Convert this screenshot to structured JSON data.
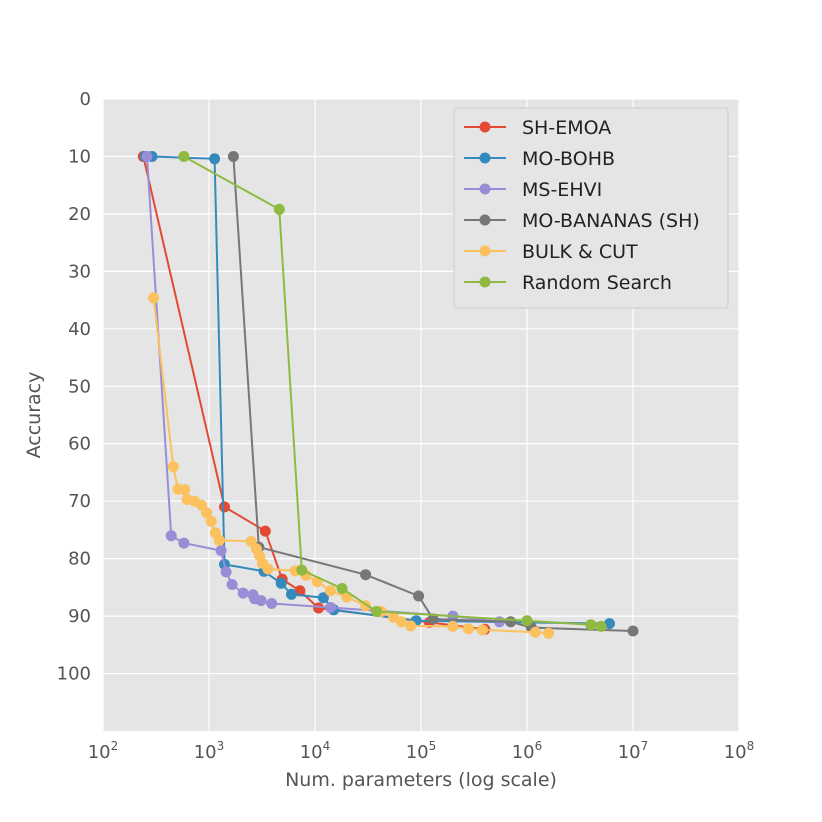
{
  "chart_data": {
    "type": "line",
    "title": "",
    "xlabel": "Num. parameters (log scale)",
    "ylabel": "Accuracy",
    "xscale": "log",
    "xlim": [
      100,
      100000000
    ],
    "ylim": [
      110,
      0
    ],
    "y_inverted": true,
    "grid": true,
    "legend_position": "top-right",
    "x_ticks": [
      {
        "base": "10",
        "exp": "2",
        "value": 100
      },
      {
        "base": "10",
        "exp": "3",
        "value": 1000
      },
      {
        "base": "10",
        "exp": "4",
        "value": 10000
      },
      {
        "base": "10",
        "exp": "5",
        "value": 100000
      },
      {
        "base": "10",
        "exp": "6",
        "value": 1000000
      },
      {
        "base": "10",
        "exp": "7",
        "value": 10000000
      },
      {
        "base": "10",
        "exp": "8",
        "value": 100000000
      }
    ],
    "y_ticks": [
      "0",
      "10",
      "20",
      "30",
      "40",
      "50",
      "60",
      "70",
      "80",
      "90",
      "100"
    ],
    "series": [
      {
        "name": "SH-EMOA",
        "color": "#E24A33",
        "points": [
          [
            240,
            10
          ],
          [
            1400,
            71
          ],
          [
            3400,
            75.2
          ],
          [
            4900,
            83.6
          ],
          [
            7200,
            85.6
          ],
          [
            10800,
            88.6
          ],
          [
            120000,
            91.1
          ],
          [
            400000,
            92.3
          ]
        ]
      },
      {
        "name": "MO-BOHB",
        "color": "#348ABD",
        "points": [
          [
            250,
            10
          ],
          [
            290,
            10
          ],
          [
            1130,
            10.4
          ],
          [
            1400,
            81
          ],
          [
            3300,
            82.2
          ],
          [
            4800,
            84.3
          ],
          [
            6000,
            86.2
          ],
          [
            12000,
            86.8
          ],
          [
            15000,
            88.9
          ],
          [
            90000,
            90.8
          ],
          [
            6000000,
            91.3
          ]
        ]
      },
      {
        "name": "MS-EHVI",
        "color": "#988ED5",
        "points": [
          [
            260,
            10
          ],
          [
            440,
            76
          ],
          [
            580,
            77.3
          ],
          [
            1300,
            78.6
          ],
          [
            1450,
            82.3
          ],
          [
            1650,
            84.5
          ],
          [
            2100,
            86
          ],
          [
            2600,
            86.3
          ],
          [
            2700,
            87
          ],
          [
            3100,
            87.3
          ],
          [
            3900,
            87.8
          ],
          [
            14000,
            88.5
          ],
          [
            200000,
            90
          ],
          [
            550000,
            91
          ]
        ]
      },
      {
        "name": "MO-BANANAS (SH)",
        "color": "#777777",
        "points": [
          [
            1700,
            10
          ],
          [
            2950,
            78
          ],
          [
            30000,
            82.8
          ],
          [
            95000,
            86.5
          ],
          [
            130000,
            90.5
          ],
          [
            700000,
            91
          ],
          [
            1100000,
            92
          ],
          [
            10000000,
            92.6
          ]
        ]
      },
      {
        "name": "BULK & CUT",
        "color": "#FBC15E",
        "points": [
          [
            300,
            34.6
          ],
          [
            460,
            64
          ],
          [
            510,
            67.9
          ],
          [
            590,
            68
          ],
          [
            620,
            69.7
          ],
          [
            730,
            70
          ],
          [
            850,
            70.7
          ],
          [
            950,
            72
          ],
          [
            1050,
            73.5
          ],
          [
            1150,
            75.5
          ],
          [
            1250,
            76.8
          ],
          [
            2500,
            77
          ],
          [
            2800,
            78.3
          ],
          [
            3000,
            79.5
          ],
          [
            3200,
            80.8
          ],
          [
            3600,
            81.8
          ],
          [
            6500,
            82.1
          ],
          [
            8200,
            82.9
          ],
          [
            10500,
            84
          ],
          [
            14000,
            85.6
          ],
          [
            20000,
            86.7
          ],
          [
            30000,
            88.2
          ],
          [
            42000,
            89.2
          ],
          [
            55000,
            90.2
          ],
          [
            65000,
            91
          ],
          [
            80000,
            91.7
          ],
          [
            200000,
            91.8
          ],
          [
            280000,
            92.2
          ],
          [
            380000,
            92.4
          ],
          [
            1200000,
            92.8
          ],
          [
            1600000,
            93
          ]
        ]
      },
      {
        "name": "Random Search",
        "color": "#8EBA42",
        "points": [
          [
            580,
            10
          ],
          [
            4600,
            19.2
          ],
          [
            7500,
            82
          ],
          [
            18000,
            85.2
          ],
          [
            38000,
            89.2
          ],
          [
            1000000,
            90.8
          ],
          [
            4000000,
            91.5
          ],
          [
            5000000,
            91.8
          ]
        ]
      }
    ]
  }
}
